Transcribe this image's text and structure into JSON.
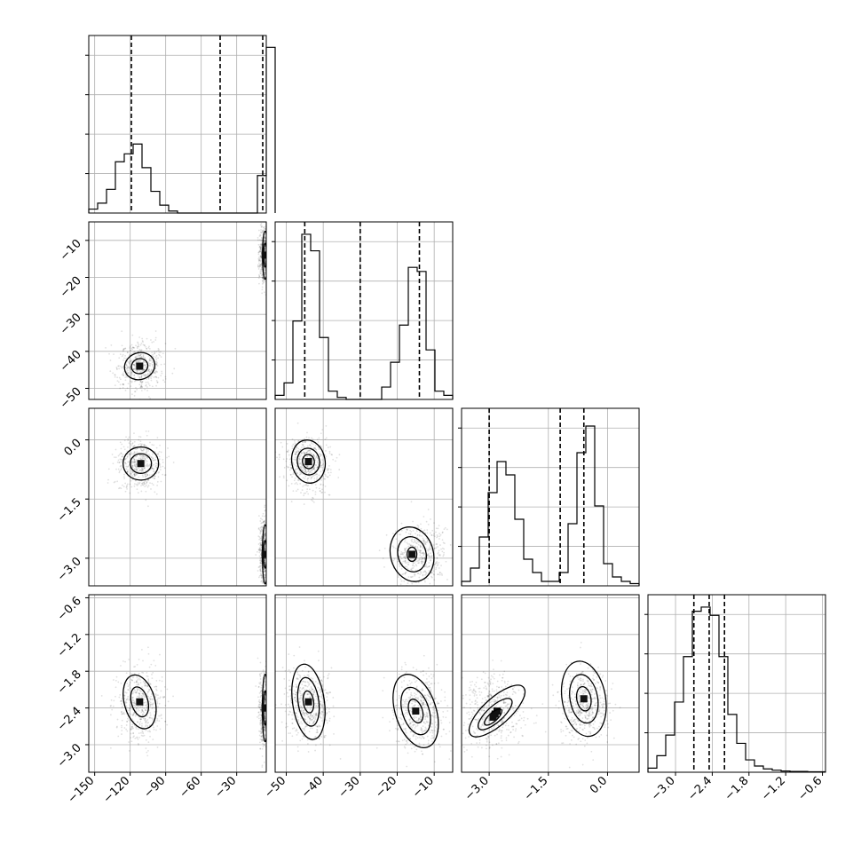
{
  "chart_data": {
    "type": "corner",
    "title": "",
    "grid": true,
    "parameters": [
      {
        "range": [
          -155,
          -5
        ],
        "ticks": [
          -150,
          -120,
          -90,
          -60,
          -30
        ],
        "tick_labels": [
          "−150",
          "−120",
          "−90",
          "−60",
          "−30"
        ],
        "quantiles": [
          -119,
          -44,
          -8
        ],
        "histogram": {
          "start": -155,
          "width": 7.5,
          "counts": [
            0.2,
            0.5,
            1.2,
            2.6,
            3.0,
            3.5,
            2.3,
            1.1,
            0.4,
            0.1,
            0,
            0,
            0,
            0,
            0,
            0,
            0,
            0,
            0,
            1.9,
            8.4
          ]
        },
        "hist_ylim": [
          0,
          9
        ]
      },
      {
        "range": [
          -53,
          -5
        ],
        "ticks": [
          -50,
          -40,
          -30,
          -20,
          -10
        ],
        "tick_labels": [
          "−50",
          "−40",
          "−30",
          "−20",
          "−10"
        ],
        "quantiles": [
          -45,
          -30,
          -14
        ],
        "histogram": {
          "start": -53,
          "width": 2.4,
          "counts": [
            0.1,
            0.4,
            1.9,
            4.0,
            3.6,
            1.5,
            0.2,
            0.05,
            0,
            0,
            0,
            0,
            0.3,
            0.9,
            1.8,
            3.2,
            3.1,
            1.2,
            0.2,
            0.1
          ]
        },
        "hist_ylim": [
          0,
          4.3
        ]
      },
      {
        "range": [
          -3.7,
          0.8
        ],
        "ticks": [
          -3.0,
          -1.5,
          0.0
        ],
        "tick_labels": [
          "−3.0",
          "−1.5",
          "0.0"
        ],
        "quantiles": [
          -3.0,
          -1.2,
          -0.6
        ],
        "histogram": {
          "start": -3.7,
          "width": 0.225,
          "counts": [
            0.1,
            0.4,
            1.1,
            2.1,
            2.8,
            2.5,
            1.5,
            0.6,
            0.3,
            0.1,
            0.1,
            0.3,
            1.4,
            3.0,
            3.6,
            1.8,
            0.5,
            0.2,
            0.1,
            0.05
          ]
        },
        "hist_ylim": [
          0,
          4.0
        ]
      },
      {
        "range": [
          -3.45,
          -0.55
        ],
        "ticks": [
          -3.0,
          -2.4,
          -1.8,
          -1.2,
          -0.6
        ],
        "tick_labels": [
          "−3.0",
          "−2.4",
          "−1.8",
          "−1.2",
          "−0.6"
        ],
        "quantiles": [
          -2.7,
          -2.45,
          -2.2
        ],
        "histogram": {
          "start": -3.45,
          "width": 0.145,
          "counts": [
            0.1,
            0.4,
            0.9,
            1.7,
            2.8,
            3.9,
            4.0,
            3.8,
            2.8,
            1.4,
            0.7,
            0.3,
            0.15,
            0.08,
            0.05,
            0.03,
            0.02,
            0.02,
            0.01,
            0.01
          ]
        },
        "hist_ylim": [
          0,
          4.3
        ]
      }
    ],
    "y_tick_labels": {
      "1": {
        "ticks": [
          -50,
          -40,
          -30,
          -20,
          -10
        ],
        "labels": [
          "−50",
          "−40",
          "−30",
          "−20",
          "−10"
        ]
      },
      "2": {
        "ticks": [
          -3.0,
          -1.5,
          0.0
        ],
        "labels": [
          "−3.0",
          "−1.5",
          "0.0"
        ]
      },
      "3": {
        "ticks": [
          -3.0,
          -2.4,
          -1.8,
          -1.2,
          -0.6
        ],
        "labels": [
          "−3.0",
          "−2.4",
          "−1.8",
          "−1.2",
          "−0.6"
        ]
      }
    },
    "clusters": [
      {
        "center": [
          -112,
          -44,
          -0.6,
          -2.35
        ],
        "sd": [
          10,
          3.2,
          0.3,
          0.28
        ]
      },
      {
        "center": [
          -7,
          -14,
          -2.9,
          -2.45
        ],
        "sd": [
          2,
          3.5,
          0.4,
          0.28
        ]
      }
    ],
    "pairs": [
      {
        "row": 1,
        "col": 0,
        "contours": [
          {
            "cx": -112,
            "cy": -44,
            "rx": 13,
            "ry": 3.6,
            "angle": 20
          },
          {
            "cx": -112,
            "cy": -44,
            "rx": 7,
            "ry": 2.0,
            "angle": 20
          },
          {
            "cx": -6,
            "cy": -14,
            "rx": 2.2,
            "ry": 6.5,
            "angle": 0
          },
          {
            "cx": -6,
            "cy": -14,
            "rx": 1.3,
            "ry": 3.2,
            "angle": 0
          }
        ]
      },
      {
        "row": 2,
        "col": 0,
        "contours": [
          {
            "cx": -111,
            "cy": -0.6,
            "rx": 15,
            "ry": 0.42,
            "angle": 0
          },
          {
            "cx": -111,
            "cy": -0.6,
            "rx": 9,
            "ry": 0.25,
            "angle": 0
          },
          {
            "cx": -6,
            "cy": -2.9,
            "rx": 2.3,
            "ry": 0.75,
            "angle": 0
          },
          {
            "cx": -6,
            "cy": -2.9,
            "rx": 1.3,
            "ry": 0.35,
            "angle": 0
          }
        ]
      },
      {
        "row": 2,
        "col": 1,
        "contours": [
          {
            "cx": -44,
            "cy": -0.55,
            "rx": 4.5,
            "ry": 0.55,
            "angle": 10
          },
          {
            "cx": -44,
            "cy": -0.55,
            "rx": 3.0,
            "ry": 0.34,
            "angle": 10
          },
          {
            "cx": -44,
            "cy": -0.55,
            "rx": 1.6,
            "ry": 0.18,
            "angle": 10
          },
          {
            "cx": -16,
            "cy": -2.9,
            "rx": 5.8,
            "ry": 0.7,
            "angle": 15
          },
          {
            "cx": -16,
            "cy": -2.9,
            "rx": 3.8,
            "ry": 0.45,
            "angle": 15
          },
          {
            "cx": -16,
            "cy": -2.9,
            "rx": 1.3,
            "ry": 0.18,
            "angle": 0
          }
        ]
      },
      {
        "row": 3,
        "col": 0,
        "contours": [
          {
            "cx": -112,
            "cy": -2.3,
            "rx": 13,
            "ry": 0.45,
            "angle": 15
          },
          {
            "cx": -112,
            "cy": -2.3,
            "rx": 7,
            "ry": 0.25,
            "angle": 15
          },
          {
            "cx": -6,
            "cy": -2.4,
            "rx": 2.3,
            "ry": 0.55,
            "angle": 0
          },
          {
            "cx": -6,
            "cy": -2.4,
            "rx": 1.3,
            "ry": 0.28,
            "angle": 0
          }
        ]
      },
      {
        "row": 3,
        "col": 1,
        "contours": [
          {
            "cx": -44,
            "cy": -2.3,
            "rx": 4.3,
            "ry": 0.62,
            "angle": 8
          },
          {
            "cx": -44,
            "cy": -2.3,
            "rx": 2.8,
            "ry": 0.4,
            "angle": 8
          },
          {
            "cx": -44,
            "cy": -2.3,
            "rx": 1.4,
            "ry": 0.18,
            "angle": 8
          },
          {
            "cx": -15,
            "cy": -2.45,
            "rx": 5.5,
            "ry": 0.62,
            "angle": 18
          },
          {
            "cx": -15,
            "cy": -2.45,
            "rx": 3.6,
            "ry": 0.4,
            "angle": 18
          },
          {
            "cx": -15,
            "cy": -2.45,
            "rx": 1.8,
            "ry": 0.2,
            "angle": 18
          }
        ]
      },
      {
        "row": 3,
        "col": 2,
        "contours": [
          {
            "cx": -2.8,
            "cy": -2.45,
            "rx": 0.9,
            "ry": 0.22,
            "angle": 42
          },
          {
            "cx": -2.85,
            "cy": -2.5,
            "rx": 0.55,
            "ry": 0.13,
            "angle": 42
          },
          {
            "cx": -2.9,
            "cy": -2.55,
            "rx": 0.28,
            "ry": 0.07,
            "angle": 42
          },
          {
            "cx": -0.6,
            "cy": -2.25,
            "rx": 0.55,
            "ry": 0.62,
            "angle": 10
          },
          {
            "cx": -0.6,
            "cy": -2.25,
            "rx": 0.35,
            "ry": 0.4,
            "angle": 10
          },
          {
            "cx": -0.6,
            "cy": -2.25,
            "rx": 0.18,
            "ry": 0.2,
            "angle": 10
          }
        ]
      }
    ]
  }
}
